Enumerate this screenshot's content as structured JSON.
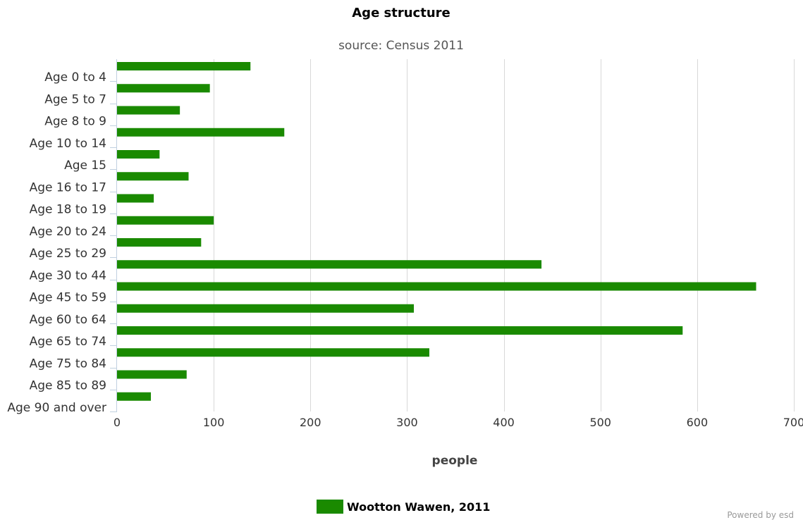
{
  "chart_data": {
    "type": "bar",
    "orientation": "horizontal",
    "title": "Age structure",
    "subtitle": "source: Census 2011",
    "categories": [
      "Age 0 to 4",
      "Age 5 to 7",
      "Age 8 to 9",
      "Age 10 to 14",
      "Age 15",
      "Age 16 to 17",
      "Age 18 to 19",
      "Age 20 to 24",
      "Age 25 to 29",
      "Age 30 to 44",
      "Age 45 to 59",
      "Age 60 to 64",
      "Age 65 to 74",
      "Age 75 to 84",
      "Age 85 to 89",
      "Age 90 and over"
    ],
    "series": [
      {
        "name": "Wootton Wawen, 2011",
        "color": "#1a8a00",
        "values": [
          138,
          96,
          65,
          173,
          44,
          74,
          38,
          100,
          87,
          439,
          661,
          307,
          585,
          323,
          72,
          35
        ]
      }
    ],
    "xlabel": "people",
    "ylabel": "",
    "xlim": [
      0,
      700
    ],
    "xticks": [
      "0",
      "100",
      "200",
      "300",
      "400",
      "500",
      "600",
      "700"
    ],
    "grid": true,
    "legend_position": "bottom-center",
    "credit": "Powered by esd"
  }
}
